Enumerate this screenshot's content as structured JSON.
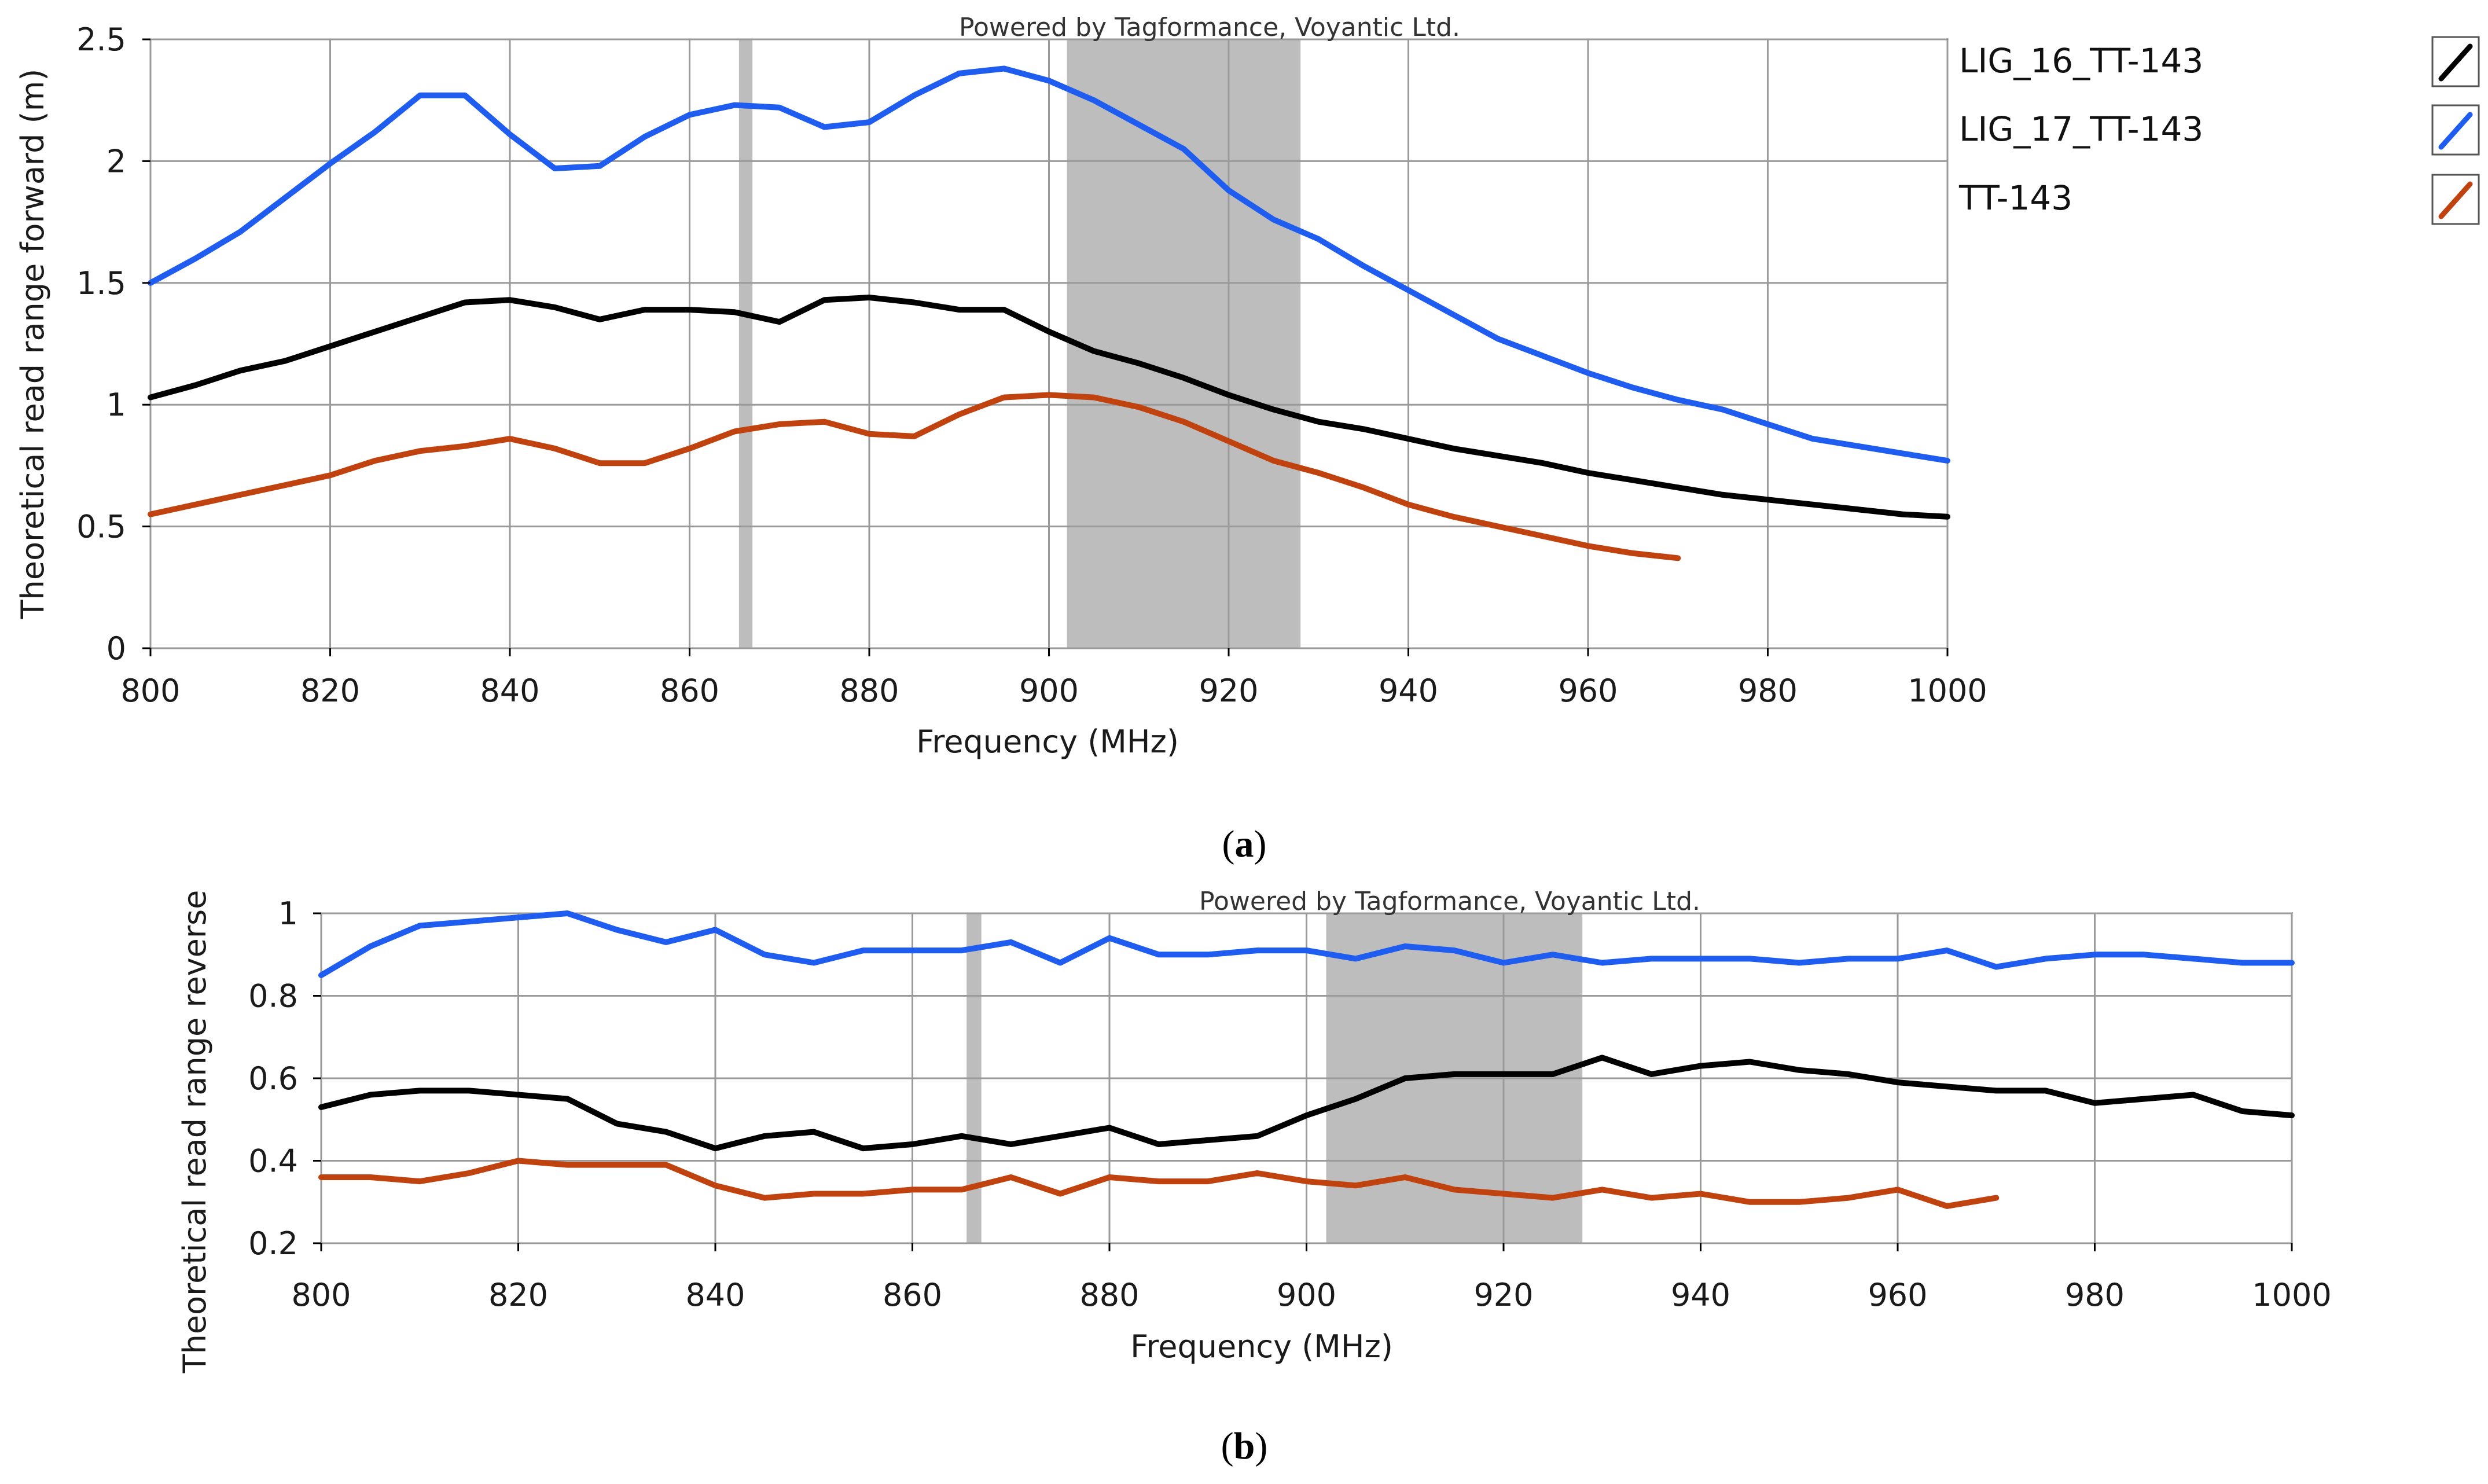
{
  "chart_data": [
    {
      "type": "line",
      "id": "a",
      "caption_letter": "a",
      "watermark": "Powered by Tagformance, Voyantic Ltd.",
      "xlabel": "Frequency (MHz)",
      "ylabel": "Theoretical read range forward (m)",
      "xlim": [
        800,
        1000
      ],
      "ylim": [
        0,
        2.5
      ],
      "xticks": [
        "800",
        "820",
        "840",
        "860",
        "880",
        "900",
        "920",
        "940",
        "960",
        "980",
        "1000"
      ],
      "yticks": [
        "0",
        "0.5",
        "1",
        "1.5",
        "2",
        "2.5"
      ],
      "grid": true,
      "shaded_bands": [
        [
          865.5,
          867
        ],
        [
          902,
          928
        ]
      ],
      "legend_position": "right",
      "series": [
        {
          "name": "LIG_16_TT-143",
          "color": "#000000",
          "x": [
            800,
            805,
            810,
            815,
            820,
            825,
            830,
            835,
            840,
            845,
            850,
            855,
            860,
            865,
            870,
            875,
            880,
            885,
            890,
            895,
            900,
            905,
            910,
            915,
            920,
            925,
            930,
            935,
            940,
            945,
            950,
            955,
            960,
            965,
            970,
            975,
            980,
            985,
            990,
            995,
            1000
          ],
          "y": [
            1.03,
            1.08,
            1.14,
            1.18,
            1.24,
            1.3,
            1.36,
            1.42,
            1.43,
            1.4,
            1.35,
            1.39,
            1.39,
            1.38,
            1.34,
            1.43,
            1.44,
            1.42,
            1.39,
            1.39,
            1.3,
            1.22,
            1.17,
            1.11,
            1.04,
            0.98,
            0.93,
            0.9,
            0.86,
            0.82,
            0.79,
            0.76,
            0.72,
            0.69,
            0.66,
            0.63,
            0.61,
            0.59,
            0.57,
            0.55,
            0.54
          ]
        },
        {
          "name": "LIG_17_TT-143",
          "color": "#1f5cf0",
          "x": [
            800,
            805,
            810,
            815,
            820,
            825,
            830,
            835,
            840,
            845,
            850,
            855,
            860,
            865,
            870,
            875,
            880,
            885,
            890,
            895,
            900,
            905,
            910,
            915,
            920,
            925,
            930,
            935,
            940,
            945,
            950,
            955,
            960,
            965,
            970,
            975,
            980,
            985,
            990,
            995,
            1000
          ],
          "y": [
            1.5,
            1.6,
            1.71,
            1.85,
            1.99,
            2.12,
            2.27,
            2.27,
            2.11,
            1.97,
            1.98,
            2.1,
            2.19,
            2.23,
            2.22,
            2.14,
            2.16,
            2.27,
            2.36,
            2.38,
            2.33,
            2.25,
            2.15,
            2.05,
            1.88,
            1.76,
            1.68,
            1.57,
            1.47,
            1.37,
            1.27,
            1.2,
            1.13,
            1.07,
            1.02,
            0.98,
            0.92,
            0.86,
            0.83,
            0.8,
            0.77
          ]
        },
        {
          "name": "TT-143",
          "color": "#c0430f",
          "x": [
            800,
            805,
            810,
            815,
            820,
            825,
            830,
            835,
            840,
            845,
            850,
            855,
            860,
            865,
            870,
            875,
            880,
            885,
            890,
            895,
            900,
            905,
            910,
            915,
            920,
            925,
            930,
            935,
            940,
            945,
            950,
            955,
            960,
            965,
            970
          ],
          "y": [
            0.55,
            0.59,
            0.63,
            0.67,
            0.71,
            0.77,
            0.81,
            0.83,
            0.86,
            0.82,
            0.76,
            0.76,
            0.82,
            0.89,
            0.92,
            0.93,
            0.88,
            0.87,
            0.96,
            1.03,
            1.04,
            1.03,
            0.99,
            0.93,
            0.85,
            0.77,
            0.72,
            0.66,
            0.59,
            0.54,
            0.5,
            0.46,
            0.42,
            0.39,
            0.37
          ]
        }
      ]
    },
    {
      "type": "line",
      "id": "b",
      "caption_letter": "b",
      "watermark": "Powered by Tagformance, Voyantic Ltd.",
      "xlabel": "Frequency (MHz)",
      "ylabel": "Theoretical read range reverse",
      "xlim": [
        800,
        1000
      ],
      "ylim": [
        0.2,
        1
      ],
      "xticks": [
        "800",
        "820",
        "840",
        "860",
        "880",
        "900",
        "920",
        "940",
        "960",
        "980",
        "1000"
      ],
      "yticks": [
        "0.2",
        "0.4",
        "0.6",
        "0.8",
        "1"
      ],
      "grid": true,
      "shaded_bands": [
        [
          865.5,
          867
        ],
        [
          902,
          928
        ]
      ],
      "series": [
        {
          "name": "LIG_16_TT-143",
          "color": "#000000",
          "x": [
            800,
            805,
            810,
            815,
            820,
            825,
            830,
            835,
            840,
            845,
            850,
            855,
            860,
            865,
            870,
            875,
            880,
            885,
            890,
            895,
            900,
            905,
            910,
            915,
            920,
            925,
            930,
            935,
            940,
            945,
            950,
            955,
            960,
            965,
            970,
            975,
            980,
            985,
            990,
            995,
            1000
          ],
          "y": [
            0.53,
            0.56,
            0.57,
            0.57,
            0.56,
            0.55,
            0.49,
            0.47,
            0.43,
            0.46,
            0.47,
            0.43,
            0.44,
            0.46,
            0.44,
            0.46,
            0.48,
            0.44,
            0.45,
            0.46,
            0.51,
            0.55,
            0.6,
            0.61,
            0.61,
            0.61,
            0.65,
            0.61,
            0.63,
            0.64,
            0.62,
            0.61,
            0.59,
            0.58,
            0.57,
            0.57,
            0.54,
            0.55,
            0.56,
            0.52,
            0.51
          ]
        },
        {
          "name": "LIG_17_TT-143",
          "color": "#1f5cf0",
          "x": [
            800,
            805,
            810,
            815,
            820,
            825,
            830,
            835,
            840,
            845,
            850,
            855,
            860,
            865,
            870,
            875,
            880,
            885,
            890,
            895,
            900,
            905,
            910,
            915,
            920,
            925,
            930,
            935,
            940,
            945,
            950,
            955,
            960,
            965,
            970,
            975,
            980,
            985,
            990,
            995,
            1000
          ],
          "y": [
            0.85,
            0.92,
            0.97,
            0.98,
            0.99,
            1.0,
            0.96,
            0.93,
            0.96,
            0.9,
            0.88,
            0.91,
            0.91,
            0.91,
            0.93,
            0.88,
            0.94,
            0.9,
            0.9,
            0.91,
            0.91,
            0.89,
            0.92,
            0.91,
            0.88,
            0.9,
            0.88,
            0.89,
            0.89,
            0.89,
            0.88,
            0.89,
            0.89,
            0.91,
            0.87,
            0.89,
            0.9,
            0.9,
            0.89,
            0.88,
            0.88
          ]
        },
        {
          "name": "TT-143",
          "color": "#c0430f",
          "x": [
            800,
            805,
            810,
            815,
            820,
            825,
            830,
            835,
            840,
            845,
            850,
            855,
            860,
            865,
            870,
            875,
            880,
            885,
            890,
            895,
            900,
            905,
            910,
            915,
            920,
            925,
            930,
            935,
            940,
            945,
            950,
            955,
            960,
            965,
            970
          ],
          "y": [
            0.36,
            0.36,
            0.35,
            0.37,
            0.4,
            0.39,
            0.39,
            0.39,
            0.34,
            0.31,
            0.32,
            0.32,
            0.33,
            0.33,
            0.36,
            0.32,
            0.36,
            0.35,
            0.35,
            0.37,
            0.35,
            0.34,
            0.36,
            0.33,
            0.32,
            0.31,
            0.33,
            0.31,
            0.32,
            0.3,
            0.3,
            0.31,
            0.33,
            0.29,
            0.31
          ]
        }
      ]
    }
  ]
}
